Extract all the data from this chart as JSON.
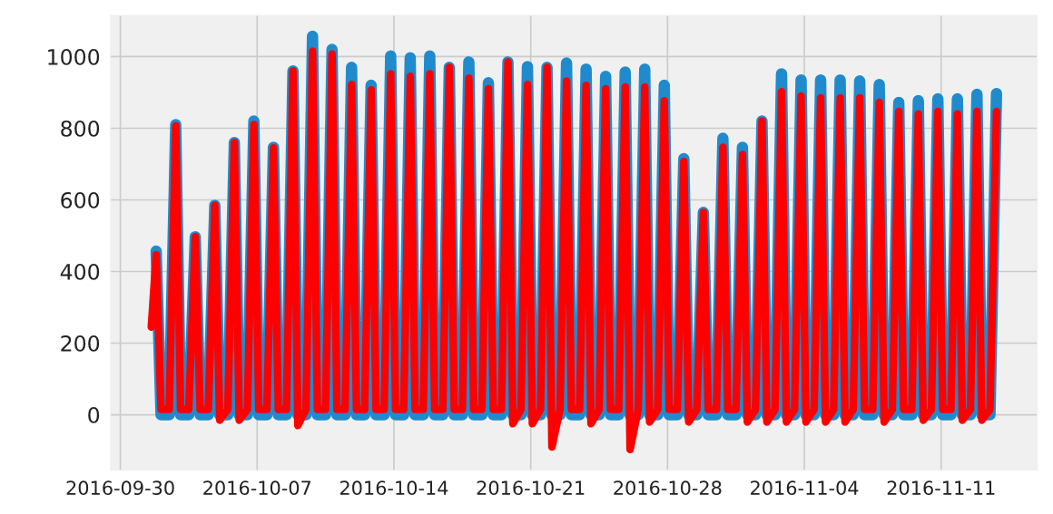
{
  "chart_data": {
    "type": "line",
    "x": [
      "2016-10-01T14:00",
      "2016-10-01T20:00",
      "2016-10-02T02:00",
      "2016-10-02T12:00",
      "2016-10-02T20:00",
      "2016-10-03T02:00",
      "2016-10-03T12:00",
      "2016-10-03T20:00",
      "2016-10-04T02:00",
      "2016-10-04T12:00",
      "2016-10-04T20:00",
      "2016-10-05T02:00",
      "2016-10-05T12:00",
      "2016-10-05T20:00",
      "2016-10-06T02:00",
      "2016-10-06T12:00",
      "2016-10-06T20:00",
      "2016-10-07T02:00",
      "2016-10-07T12:00",
      "2016-10-07T20:00",
      "2016-10-08T02:00",
      "2016-10-08T12:00",
      "2016-10-08T20:00",
      "2016-10-09T02:00",
      "2016-10-09T12:00",
      "2016-10-09T20:00",
      "2016-10-10T02:00",
      "2016-10-10T12:00",
      "2016-10-10T20:00",
      "2016-10-11T02:00",
      "2016-10-11T12:00",
      "2016-10-11T20:00",
      "2016-10-12T02:00",
      "2016-10-12T12:00",
      "2016-10-12T20:00",
      "2016-10-13T02:00",
      "2016-10-13T12:00",
      "2016-10-13T20:00",
      "2016-10-14T02:00",
      "2016-10-14T12:00",
      "2016-10-14T20:00",
      "2016-10-15T02:00",
      "2016-10-15T12:00",
      "2016-10-15T20:00",
      "2016-10-16T02:00",
      "2016-10-16T12:00",
      "2016-10-16T20:00",
      "2016-10-17T02:00",
      "2016-10-17T12:00",
      "2016-10-17T20:00",
      "2016-10-18T02:00",
      "2016-10-18T12:00",
      "2016-10-18T20:00",
      "2016-10-19T02:00",
      "2016-10-19T12:00",
      "2016-10-19T20:00",
      "2016-10-20T02:00",
      "2016-10-20T12:00",
      "2016-10-20T20:00",
      "2016-10-21T02:00",
      "2016-10-21T12:00",
      "2016-10-21T20:00",
      "2016-10-22T02:00",
      "2016-10-22T12:00",
      "2016-10-22T20:00",
      "2016-10-23T02:00",
      "2016-10-23T12:00",
      "2016-10-23T20:00",
      "2016-10-24T02:00",
      "2016-10-24T12:00",
      "2016-10-24T20:00",
      "2016-10-25T02:00",
      "2016-10-25T12:00",
      "2016-10-25T20:00",
      "2016-10-26T02:00",
      "2016-10-26T12:00",
      "2016-10-26T20:00",
      "2016-10-27T02:00",
      "2016-10-27T12:00",
      "2016-10-27T20:00",
      "2016-10-28T02:00",
      "2016-10-28T12:00",
      "2016-10-28T20:00",
      "2016-10-29T02:00",
      "2016-10-29T12:00",
      "2016-10-29T20:00",
      "2016-10-30T02:00",
      "2016-10-30T12:00",
      "2016-10-30T20:00",
      "2016-10-31T02:00",
      "2016-10-31T12:00",
      "2016-10-31T20:00",
      "2016-11-01T02:00",
      "2016-11-01T12:00",
      "2016-11-01T20:00",
      "2016-11-02T02:00",
      "2016-11-02T12:00",
      "2016-11-02T20:00",
      "2016-11-03T02:00",
      "2016-11-03T12:00",
      "2016-11-03T20:00",
      "2016-11-04T02:00",
      "2016-11-04T12:00",
      "2016-11-04T20:00",
      "2016-11-05T02:00",
      "2016-11-05T12:00",
      "2016-11-05T20:00",
      "2016-11-06T02:00",
      "2016-11-06T12:00",
      "2016-11-06T20:00",
      "2016-11-07T02:00",
      "2016-11-07T12:00",
      "2016-11-07T20:00",
      "2016-11-08T02:00",
      "2016-11-08T12:00",
      "2016-11-08T20:00",
      "2016-11-09T02:00",
      "2016-11-09T12:00",
      "2016-11-09T20:00",
      "2016-11-10T02:00",
      "2016-11-10T12:00",
      "2016-11-10T20:00",
      "2016-11-11T02:00",
      "2016-11-11T12:00",
      "2016-11-11T20:00",
      "2016-11-12T02:00",
      "2016-11-12T12:00",
      "2016-11-12T20:00",
      "2016-11-13T02:00",
      "2016-11-13T12:00",
      "2016-11-13T20:00"
    ],
    "series": [
      {
        "color": "#1f8bcd",
        "values": [
          null,
          457,
          0,
          0,
          810,
          0,
          0,
          497,
          0,
          0,
          585,
          0,
          0,
          760,
          0,
          0,
          820,
          0,
          0,
          747,
          0,
          0,
          960,
          0,
          0,
          1057,
          0,
          0,
          1020,
          0,
          0,
          970,
          0,
          0,
          920,
          0,
          0,
          1002,
          0,
          0,
          997,
          0,
          0,
          1002,
          0,
          0,
          970,
          0,
          0,
          985,
          0,
          0,
          927,
          0,
          0,
          985,
          0,
          0,
          972,
          0,
          0,
          970,
          0,
          0,
          982,
          0,
          0,
          965,
          0,
          0,
          945,
          0,
          0,
          957,
          0,
          0,
          965,
          0,
          0,
          920,
          0,
          0,
          715,
          0,
          0,
          565,
          0,
          0,
          772,
          0,
          0,
          747,
          0,
          0,
          820,
          0,
          0,
          952,
          0,
          0,
          935,
          0,
          0,
          935,
          0,
          0,
          935,
          0,
          0,
          932,
          0,
          0,
          922,
          0,
          0,
          872,
          0,
          0,
          877,
          0,
          0,
          882,
          0,
          0,
          882,
          0,
          0,
          895,
          0,
          0,
          897
        ]
      },
      {
        "color": "#ff0000",
        "values": [
          245,
          447,
          15,
          15,
          807,
          15,
          15,
          497,
          15,
          15,
          585,
          -15,
          15,
          760,
          -15,
          15,
          810,
          15,
          15,
          745,
          15,
          15,
          960,
          -30,
          15,
          1015,
          15,
          15,
          1007,
          15,
          15,
          922,
          15,
          15,
          907,
          15,
          15,
          952,
          15,
          15,
          945,
          15,
          15,
          952,
          15,
          15,
          970,
          15,
          15,
          940,
          15,
          15,
          910,
          15,
          15,
          985,
          -25,
          15,
          922,
          -25,
          15,
          970,
          -90,
          15,
          932,
          15,
          15,
          920,
          -25,
          15,
          910,
          15,
          15,
          915,
          -97,
          15,
          915,
          -20,
          15,
          877,
          15,
          15,
          707,
          -20,
          15,
          565,
          15,
          15,
          747,
          15,
          15,
          727,
          -20,
          15,
          820,
          -20,
          15,
          902,
          -20,
          15,
          890,
          -20,
          15,
          885,
          -20,
          15,
          885,
          -20,
          15,
          885,
          15,
          15,
          872,
          -20,
          15,
          847,
          15,
          15,
          840,
          -15,
          15,
          847,
          15,
          15,
          840,
          -15,
          15,
          847,
          -15,
          15,
          847
        ]
      }
    ],
    "xlim": [
      "2016-09-29T12:00",
      "2016-11-15T22:00"
    ],
    "xticks": [
      "2016-09-30",
      "2016-10-07",
      "2016-10-14",
      "2016-10-21",
      "2016-10-28",
      "2016-11-04",
      "2016-11-11"
    ],
    "ylim": [
      -155,
      1115
    ],
    "yticks": [
      0,
      200,
      400,
      600,
      800,
      1000
    ],
    "grid": true,
    "line_style": "solid",
    "marker": "none"
  }
}
